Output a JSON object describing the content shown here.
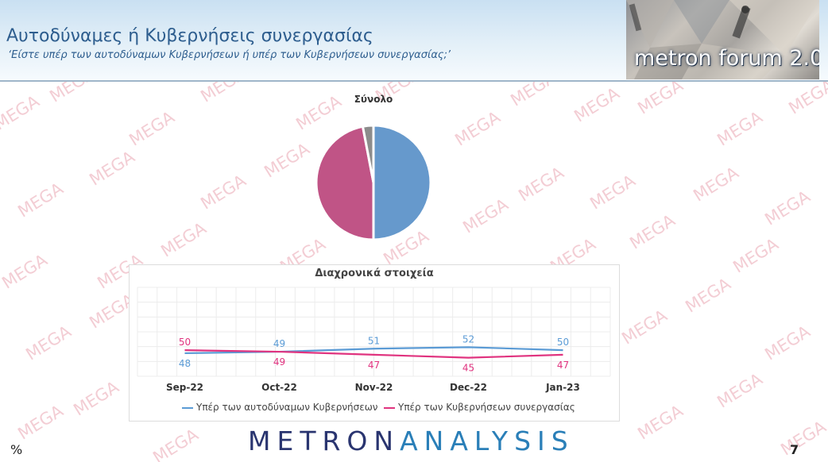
{
  "header": {
    "title": "Αυτοδύναμες ή Κυβερνήσεις συνεργασίας",
    "subtitle": "‘Είστε υπέρ των αυτοδύναμων Κυβερνήσεων ή υπέρ των Κυβερνήσεων συνεργασίας;’"
  },
  "logo": {
    "text": "metron forum 2.0"
  },
  "watermark": "MEGA",
  "footer": {
    "brand_part1": "METRON",
    "brand_part2": "ANALYSIS",
    "unit": "%",
    "page_number": "7"
  },
  "colors": {
    "series1": "#5b9bd5",
    "series2": "#e0337f",
    "pie_blue": "#6699cc",
    "pie_pink": "#c05486",
    "pie_gray": "#8c8c8c"
  },
  "chart_data": [
    {
      "type": "pie",
      "title": "Σύνολο",
      "slices": [
        {
          "label": "Υπέρ των αυτοδύναμων Κυβερνήσεων",
          "value": 50
        },
        {
          "label": "Υπέρ των Κυβερνήσεων συνεργασίας",
          "value": 47
        },
        {
          "label": "",
          "value": 3
        }
      ]
    },
    {
      "type": "line",
      "title": "Διαχρονικά στοιχεία",
      "categories": [
        "Sep-22",
        "Oct-22",
        "Nov-22",
        "Dec-22",
        "Jan-23"
      ],
      "series": [
        {
          "name": "Υπέρ των αυτοδύναμων Κυβερνήσεων",
          "values": [
            48,
            49,
            51,
            52,
            50
          ]
        },
        {
          "name": "Υπέρ των Κυβερνήσεων συνεργασίας",
          "values": [
            50,
            49,
            47,
            45,
            47
          ]
        }
      ],
      "grid": true,
      "legend_position": "bottom"
    }
  ]
}
